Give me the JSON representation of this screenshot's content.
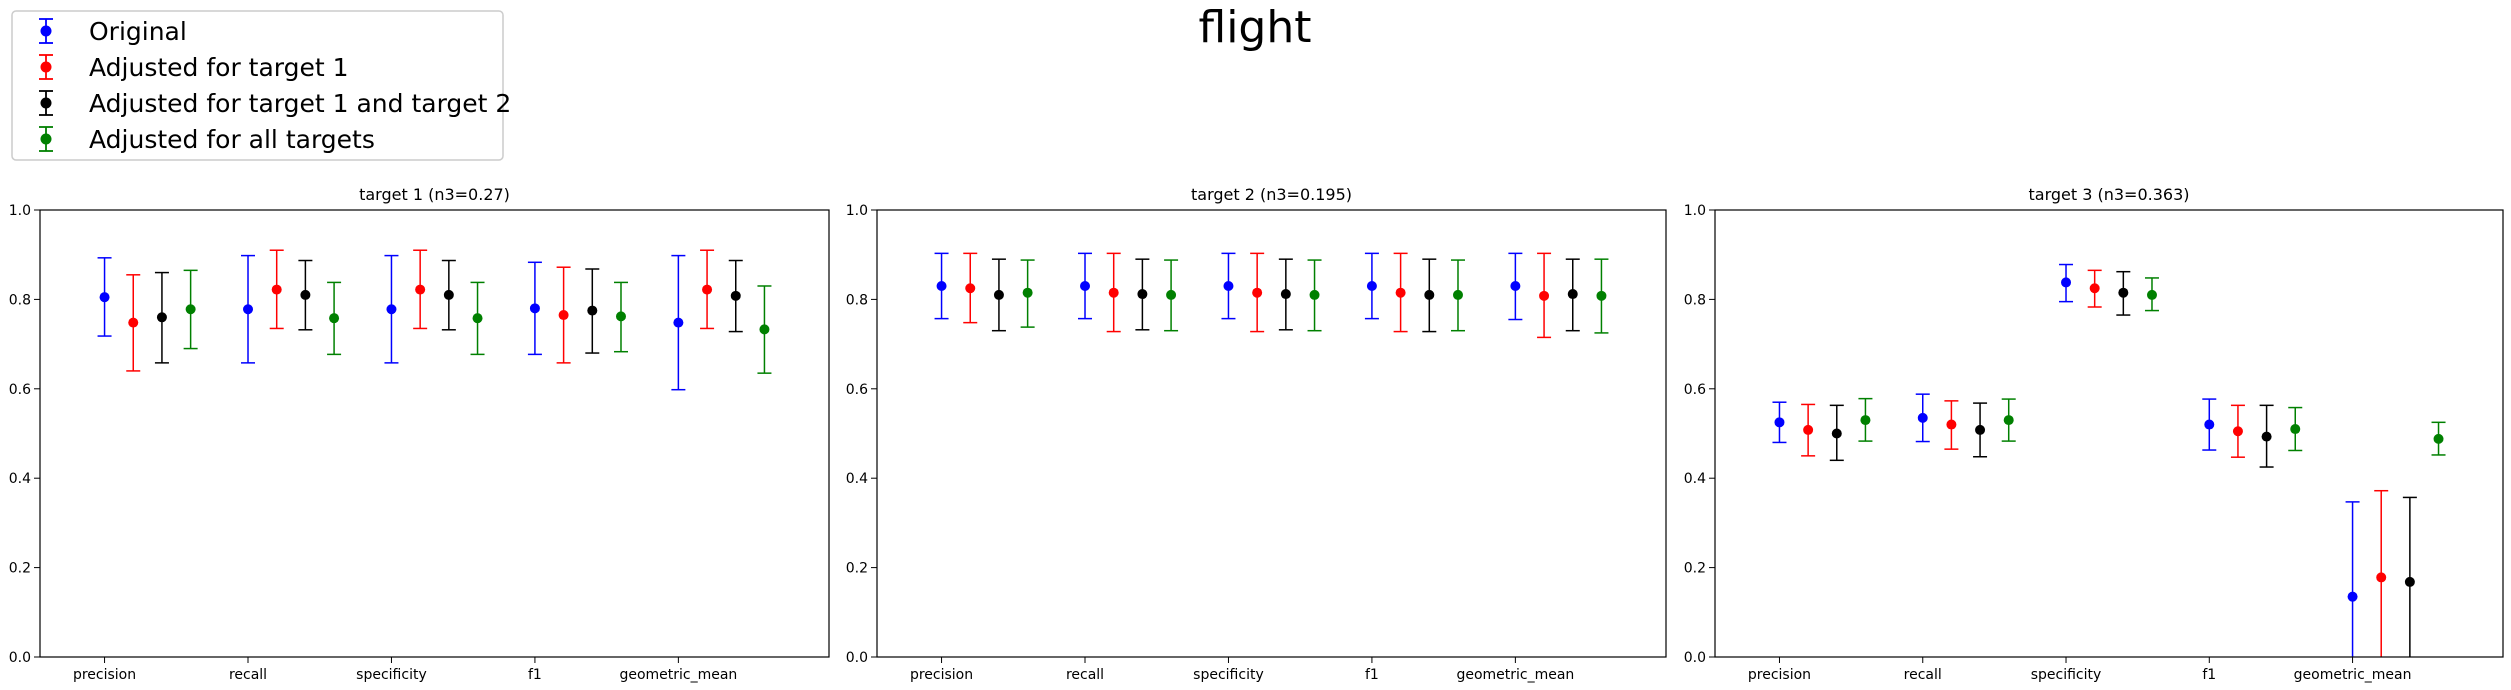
{
  "figure": {
    "title": "flight"
  },
  "legend": {
    "location": "upper-left",
    "entries": [
      {
        "label": "Original",
        "color": "#0000ff"
      },
      {
        "label": "Adjusted for target 1",
        "color": "#ff0000"
      },
      {
        "label": "Adjusted for target 1 and target 2",
        "color": "#000000"
      },
      {
        "label": "Adjusted for all targets",
        "color": "#008000"
      }
    ]
  },
  "chart_data": [
    {
      "type": "errorbar",
      "title": "target 1 (n3=0.27)",
      "categories": [
        "precision",
        "recall",
        "specificity",
        "f1",
        "geometric_mean"
      ],
      "ylim": [
        0.0,
        1.0
      ],
      "yticks": [
        "0.0",
        "0.2",
        "0.4",
        "0.6",
        "0.8",
        "1.0"
      ],
      "series": [
        {
          "name": "Original",
          "values": [
            0.805,
            0.778,
            0.778,
            0.78,
            0.748
          ],
          "lower": [
            0.718,
            0.658,
            0.658,
            0.677,
            0.598
          ],
          "upper": [
            0.893,
            0.898,
            0.898,
            0.883,
            0.898
          ]
        },
        {
          "name": "Adjusted for target 1",
          "values": [
            0.748,
            0.822,
            0.822,
            0.765,
            0.822
          ],
          "lower": [
            0.64,
            0.735,
            0.735,
            0.658,
            0.735
          ],
          "upper": [
            0.855,
            0.91,
            0.91,
            0.872,
            0.91
          ]
        },
        {
          "name": "Adjusted for target 1 and target 2",
          "values": [
            0.76,
            0.81,
            0.81,
            0.775,
            0.808
          ],
          "lower": [
            0.658,
            0.732,
            0.732,
            0.68,
            0.728
          ],
          "upper": [
            0.86,
            0.887,
            0.887,
            0.868,
            0.887
          ]
        },
        {
          "name": "Adjusted for all targets",
          "values": [
            0.778,
            0.758,
            0.758,
            0.762,
            0.733
          ],
          "lower": [
            0.69,
            0.677,
            0.677,
            0.683,
            0.635
          ],
          "upper": [
            0.865,
            0.838,
            0.838,
            0.838,
            0.83
          ]
        }
      ]
    },
    {
      "type": "errorbar",
      "title": "target 2 (n3=0.195)",
      "categories": [
        "precision",
        "recall",
        "specificity",
        "f1",
        "geometric_mean"
      ],
      "ylim": [
        0.0,
        1.0
      ],
      "yticks": [
        "0.0",
        "0.2",
        "0.4",
        "0.6",
        "0.8",
        "1.0"
      ],
      "series": [
        {
          "name": "Original",
          "values": [
            0.83,
            0.83,
            0.83,
            0.83,
            0.83
          ],
          "lower": [
            0.757,
            0.757,
            0.757,
            0.757,
            0.755
          ],
          "upper": [
            0.903,
            0.903,
            0.903,
            0.903,
            0.903
          ]
        },
        {
          "name": "Adjusted for target 1",
          "values": [
            0.825,
            0.815,
            0.815,
            0.815,
            0.808
          ],
          "lower": [
            0.748,
            0.728,
            0.728,
            0.728,
            0.715
          ],
          "upper": [
            0.903,
            0.903,
            0.903,
            0.903,
            0.903
          ]
        },
        {
          "name": "Adjusted for target 1 and target 2",
          "values": [
            0.81,
            0.812,
            0.812,
            0.81,
            0.812
          ],
          "lower": [
            0.73,
            0.732,
            0.732,
            0.728,
            0.73
          ],
          "upper": [
            0.89,
            0.89,
            0.89,
            0.89,
            0.89
          ]
        },
        {
          "name": "Adjusted for all targets",
          "values": [
            0.815,
            0.81,
            0.81,
            0.81,
            0.808
          ],
          "lower": [
            0.738,
            0.73,
            0.73,
            0.73,
            0.725
          ],
          "upper": [
            0.888,
            0.888,
            0.888,
            0.888,
            0.89
          ]
        }
      ]
    },
    {
      "type": "errorbar",
      "title": "target 3 (n3=0.363)",
      "categories": [
        "precision",
        "recall",
        "specificity",
        "f1",
        "geometric_mean"
      ],
      "ylim": [
        0.0,
        1.0
      ],
      "yticks": [
        "0.0",
        "0.2",
        "0.4",
        "0.6",
        "0.8",
        "1.0"
      ],
      "series": [
        {
          "name": "Original",
          "values": [
            0.525,
            0.535,
            0.838,
            0.52,
            0.135
          ],
          "lower": [
            0.48,
            0.482,
            0.795,
            0.463,
            0.0
          ],
          "upper": [
            0.57,
            0.588,
            0.878,
            0.577,
            0.347
          ]
        },
        {
          "name": "Adjusted for target 1",
          "values": [
            0.508,
            0.52,
            0.825,
            0.505,
            0.178
          ],
          "lower": [
            0.45,
            0.465,
            0.783,
            0.447,
            0.0
          ],
          "upper": [
            0.565,
            0.573,
            0.865,
            0.563,
            0.372
          ]
        },
        {
          "name": "Adjusted for target 1 and target 2",
          "values": [
            0.5,
            0.508,
            0.815,
            0.493,
            0.168
          ],
          "lower": [
            0.44,
            0.448,
            0.765,
            0.425,
            0.0
          ],
          "upper": [
            0.563,
            0.568,
            0.862,
            0.563,
            0.357
          ]
        },
        {
          "name": "Adjusted for all targets",
          "values": [
            0.53,
            0.53,
            0.81,
            0.51,
            0.488
          ],
          "lower": [
            0.483,
            0.483,
            0.775,
            0.462,
            0.452
          ],
          "upper": [
            0.578,
            0.577,
            0.848,
            0.558,
            0.525
          ]
        }
      ]
    }
  ]
}
